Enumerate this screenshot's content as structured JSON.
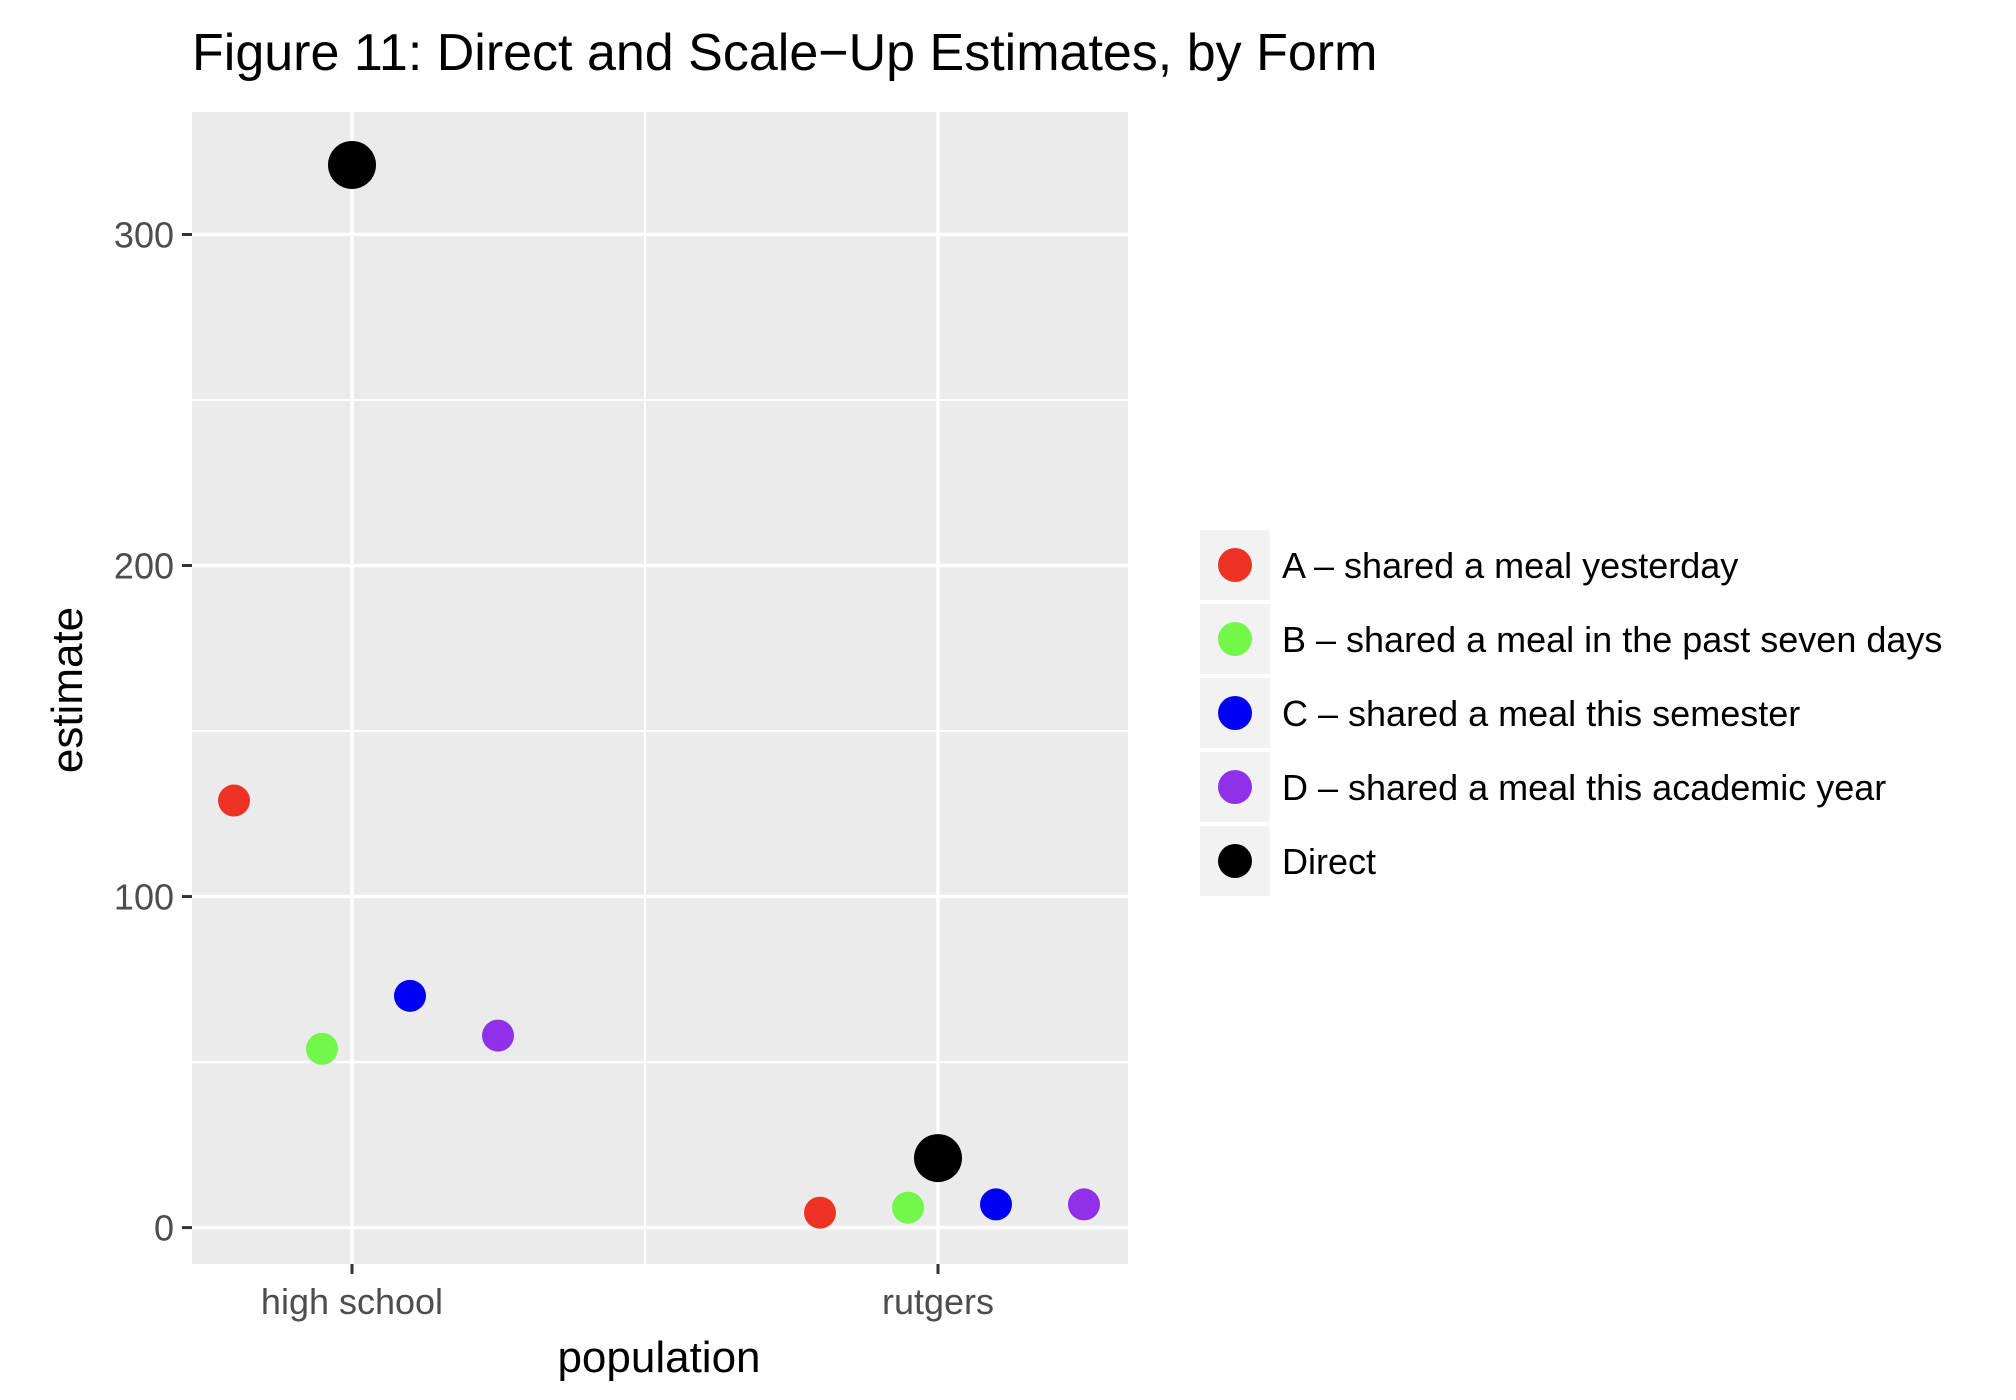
{
  "chart_data": {
    "type": "scatter",
    "title": "Figure 11: Direct and Scale−Up Estimates, by Form",
    "xlabel": "population",
    "ylabel": "estimate",
    "categories": [
      "high school",
      "rutgers"
    ],
    "ylim": [
      -11,
      337
    ],
    "y_ticks": [
      0,
      100,
      200,
      300
    ],
    "grid": true,
    "panel_background": "#ebebeb",
    "legend_position": "right",
    "series": [
      {
        "name": "A – shared a meal yesterday",
        "color": "#ee3224",
        "points": [
          {
            "x": "high school",
            "y": 129
          },
          {
            "x": "rutgers",
            "y": 4.5
          }
        ]
      },
      {
        "name": "B – shared a meal in the past seven days",
        "color": "#72f74a",
        "points": [
          {
            "x": "high school",
            "y": 54
          },
          {
            "x": "rutgers",
            "y": 6
          }
        ]
      },
      {
        "name": "C – shared a meal this semester",
        "color": "#0000f5",
        "points": [
          {
            "x": "high school",
            "y": 70
          },
          {
            "x": "rutgers",
            "y": 7
          }
        ]
      },
      {
        "name": "D – shared a meal this academic year",
        "color": "#9030e8",
        "points": [
          {
            "x": "high school",
            "y": 58
          },
          {
            "x": "rutgers",
            "y": 7
          }
        ]
      },
      {
        "name": "Direct",
        "color": "#000000",
        "points": [
          {
            "x": "high school",
            "y": 321
          },
          {
            "x": "rutgers",
            "y": 21
          }
        ]
      }
    ]
  }
}
